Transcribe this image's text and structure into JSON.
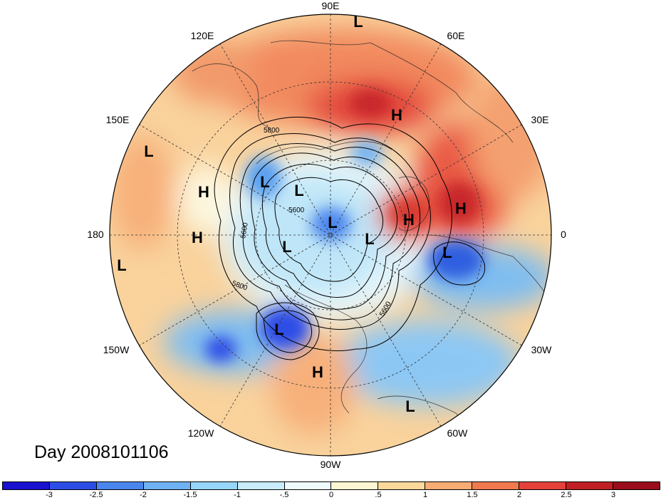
{
  "date_label": "Day 2008101106",
  "longitude_labels": {
    "lon_90e": "90E",
    "lon_60e": "60E",
    "lon_30e": "30E",
    "lon_0": "0",
    "lon_30w": "30W",
    "lon_60w": "60W",
    "lon_90w": "90W",
    "lon_120w": "120W",
    "lon_150w": "150W",
    "lon_180": "180",
    "lon_150e": "150E",
    "lon_120e": "120E"
  },
  "contour_labels": [
    "5800",
    "5600",
    "5600",
    "5800",
    "5600"
  ],
  "pressure_centers": [
    {
      "label": "L"
    },
    {
      "label": "H"
    },
    {
      "label": "L"
    },
    {
      "label": "L"
    },
    {
      "label": "L"
    },
    {
      "label": "H"
    },
    {
      "label": "H"
    },
    {
      "label": "H"
    },
    {
      "label": "L"
    },
    {
      "label": "L"
    },
    {
      "label": "H"
    },
    {
      "label": "L"
    },
    {
      "label": "L"
    },
    {
      "label": "L"
    },
    {
      "label": "H"
    },
    {
      "label": "L"
    }
  ],
  "colorbar": {
    "ticks": [
      "-3",
      "-2.5",
      "-2",
      "-1.5",
      "-1",
      "-.5",
      "0",
      ".5",
      "1",
      "1.5",
      "2",
      "2.5",
      "3"
    ],
    "colors": [
      "#1a10d0",
      "#2d4ee6",
      "#4b86ee",
      "#6fb2f4",
      "#96d6f8",
      "#c8ecfa",
      "#eefafc",
      "#fdf6d2",
      "#fbd99b",
      "#f7ac73",
      "#f0794f",
      "#e4413a",
      "#c01f24",
      "#9a0d1a"
    ]
  }
}
